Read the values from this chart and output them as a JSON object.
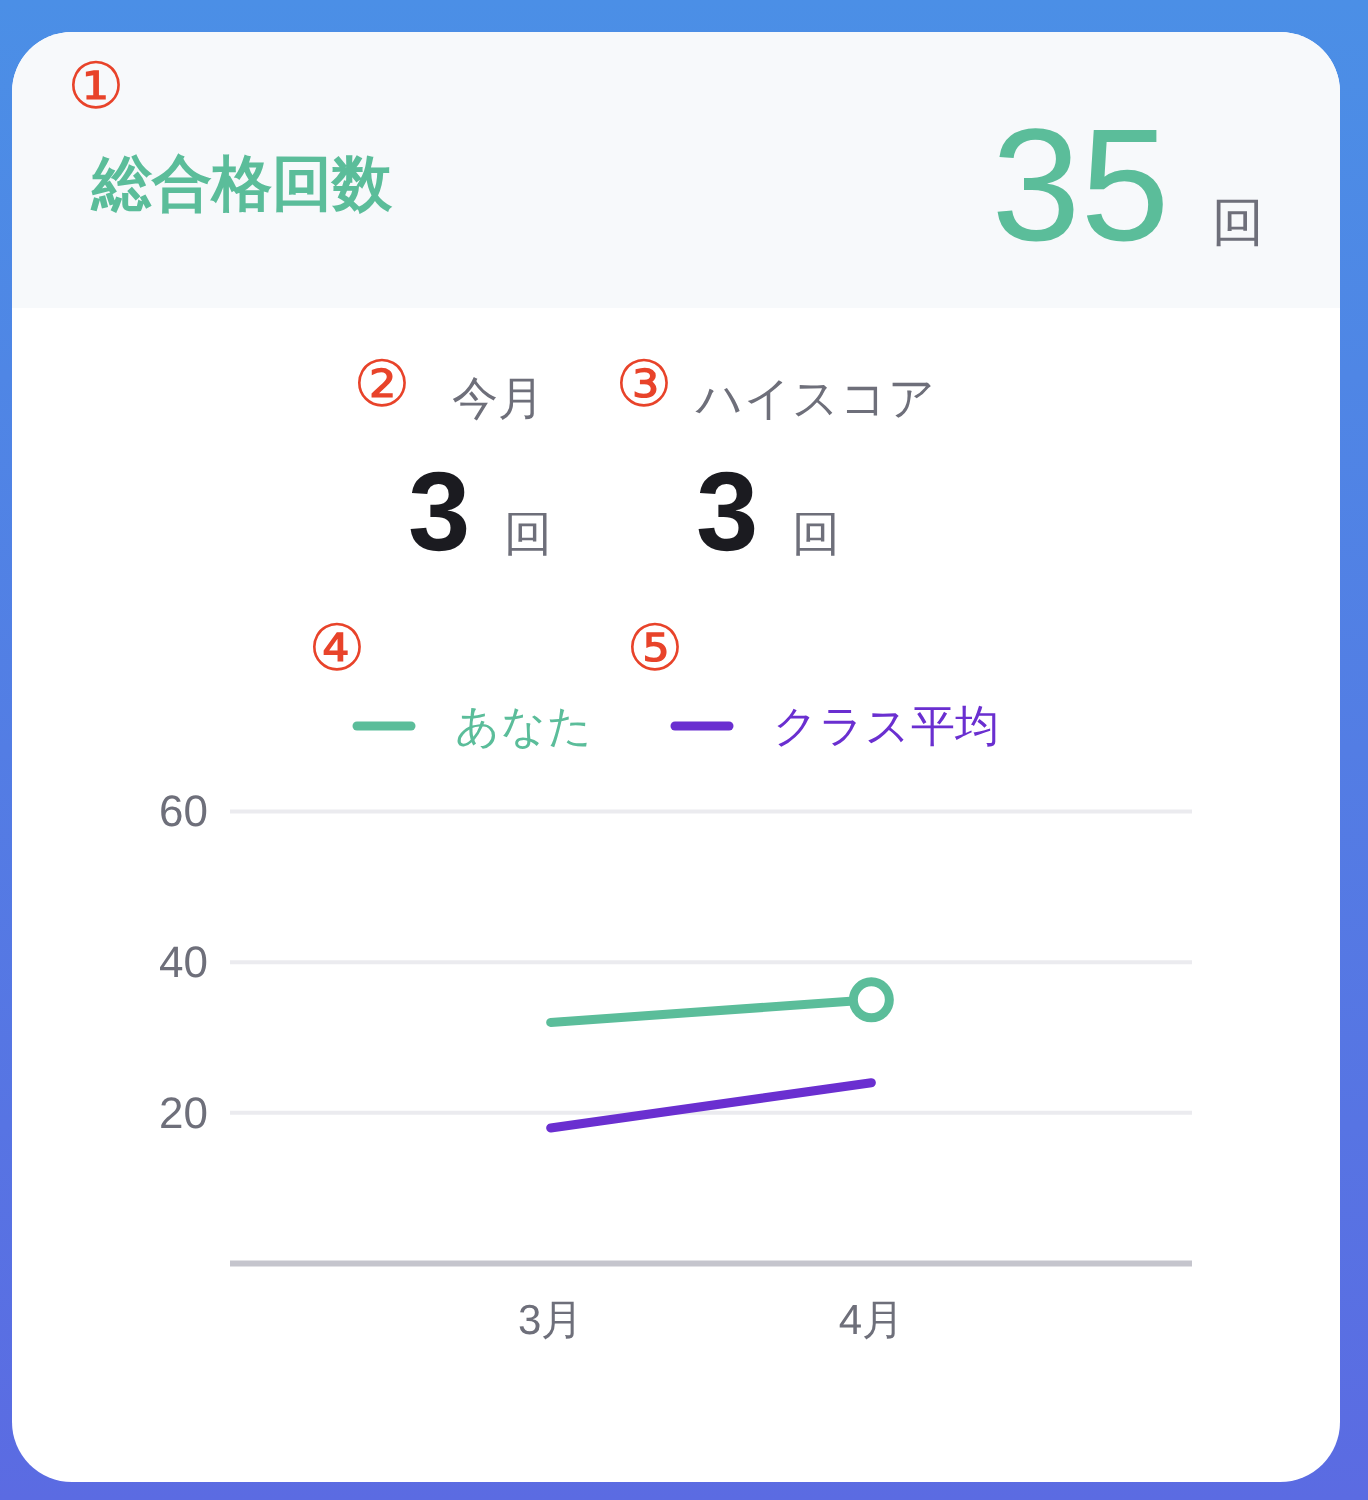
{
  "chart_data": [
    {
      "type": "other",
      "title": "総合格回数",
      "values": [
        35
      ],
      "value_labels": [
        "35 回"
      ],
      "annotations": [
        "①"
      ]
    },
    {
      "type": "other",
      "categories": [
        "今月",
        "ハイスコア"
      ],
      "values": [
        3,
        3
      ],
      "value_labels": [
        "3 回",
        "3 回"
      ],
      "annotations": [
        "②",
        "③"
      ]
    },
    {
      "type": "line",
      "categories": [
        null,
        "3月",
        "4月",
        null
      ],
      "series": [
        {
          "name": "あなた",
          "color": "#5bbd9a",
          "values": [
            null,
            32,
            35,
            null
          ]
        },
        {
          "name": "クラス平均",
          "color": "#6a2fd0",
          "values": [
            null,
            18,
            24,
            null
          ]
        },
        {
          "type": "scatter",
          "color": "#5bbd9a",
          "marker": "circle",
          "values": [
            null,
            null,
            35,
            null
          ]
        }
      ],
      "ylim": [
        0,
        60
      ],
      "yticks": [
        20,
        40,
        60
      ],
      "grid": "y",
      "legend": "top",
      "annotations": [
        "④",
        "⑤"
      ]
    }
  ]
}
